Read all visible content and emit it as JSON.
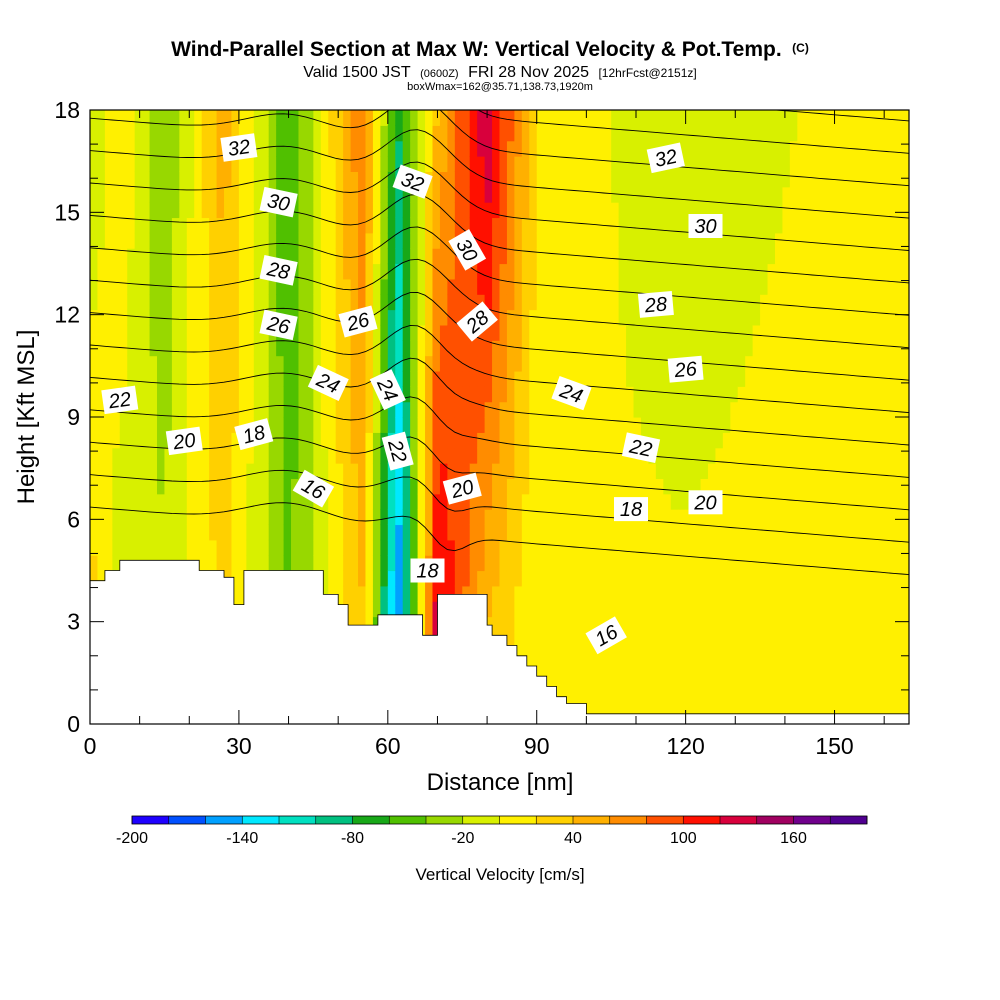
{
  "chart_data": {
    "type": "heatmap",
    "title": "Wind-Parallel Section at Max W: Vertical Velocity & Pot.Temp.",
    "title_mark": "(C)",
    "subtitle_pre": "Valid 1500 JST",
    "subtitle_small": "(0600Z)",
    "subtitle_main": "FRI 28 Nov 2025",
    "subtitle_post": "[12hrFcst@2151z]",
    "subtitle2": "boxWmax=162@35.71,138.73,1920m",
    "xlabel": "Distance [nm]",
    "ylabel": "Height [Kft MSL]",
    "xlim": [
      0,
      165
    ],
    "ylim": [
      0,
      18
    ],
    "x_ticks": [
      "0",
      "30",
      "60",
      "90",
      "120",
      "150"
    ],
    "y_ticks": [
      "0",
      "3",
      "6",
      "9",
      "12",
      "15",
      "18"
    ],
    "colorbar": {
      "label": "Vertical Velocity [cm/s]",
      "tick_labels": [
        "-200",
        "-140",
        "-80",
        "-20",
        "40",
        "100",
        "160"
      ],
      "colors": [
        "#1e00ff",
        "#0050ff",
        "#00a0ff",
        "#00e8ff",
        "#00e0c0",
        "#00c080",
        "#18a818",
        "#50c000",
        "#98d800",
        "#d8f000",
        "#fff000",
        "#ffd000",
        "#ffb000",
        "#ff8c00",
        "#ff5000",
        "#ff1000",
        "#d8003c",
        "#a00060",
        "#70008c",
        "#500090"
      ]
    },
    "velocity_bands": [
      {
        "x": 0,
        "w_top": -20,
        "w_bottom": 40
      },
      {
        "x": 6,
        "w_top": 20,
        "w_bottom": -20
      },
      {
        "x": 15,
        "w_top": -40,
        "w_bottom": -10
      },
      {
        "x": 27,
        "w_top": 50,
        "w_bottom": 20
      },
      {
        "x": 40,
        "w_top": -60,
        "w_bottom": -40
      },
      {
        "x": 55,
        "w_top": 80,
        "w_bottom": 30
      },
      {
        "x": 62,
        "w_top": -80,
        "w_bottom": -180
      },
      {
        "x": 70,
        "w_top": 40,
        "w_bottom": 150
      },
      {
        "x": 80,
        "w_top": 140,
        "w_bottom": 20
      },
      {
        "x": 90,
        "w_top": 20,
        "w_bottom": 0
      },
      {
        "x": 120,
        "w_top": -20,
        "w_bottom": 10
      },
      {
        "x": 165,
        "w_top": 20,
        "w_bottom": 20
      }
    ],
    "terrain": {
      "x": [
        0,
        3,
        3,
        6,
        6,
        22,
        22,
        27,
        27,
        29,
        29,
        31,
        31,
        36,
        36,
        47,
        47,
        50,
        50,
        52,
        52,
        58,
        58,
        67,
        67,
        70,
        70,
        80,
        80,
        81,
        81,
        84,
        84,
        86,
        86,
        88,
        88,
        90,
        90,
        92,
        92,
        94,
        94,
        96,
        96,
        100,
        100,
        106,
        106,
        165
      ],
      "height": [
        4.2,
        4.2,
        4.5,
        4.5,
        4.8,
        4.8,
        4.5,
        4.5,
        4.3,
        4.3,
        3.5,
        3.5,
        4.5,
        4.5,
        4.5,
        4.5,
        3.8,
        3.8,
        3.5,
        3.5,
        2.9,
        2.9,
        3.2,
        3.2,
        2.6,
        2.6,
        3.8,
        3.8,
        2.9,
        2.9,
        2.6,
        2.6,
        2.3,
        2.3,
        2.0,
        2.0,
        1.7,
        1.7,
        1.4,
        1.4,
        1.1,
        1.1,
        0.8,
        0.8,
        0.6,
        0.6,
        0.3,
        0.3,
        0.3,
        0.3
      ]
    },
    "theta_levels": [
      16,
      17,
      18,
      19,
      20,
      21,
      22,
      23,
      24,
      25,
      26,
      27,
      28,
      29,
      30,
      31,
      32,
      33
    ],
    "contour_labels": [
      {
        "text": "32",
        "x": 30,
        "y": 16.9,
        "rot": -8
      },
      {
        "text": "30",
        "x": 38,
        "y": 15.3,
        "rot": 12
      },
      {
        "text": "28",
        "x": 38,
        "y": 13.3,
        "rot": 12
      },
      {
        "text": "26",
        "x": 38,
        "y": 11.7,
        "rot": 12
      },
      {
        "text": "26",
        "x": 54,
        "y": 11.8,
        "rot": -15
      },
      {
        "text": "24",
        "x": 48,
        "y": 10.0,
        "rot": 25
      },
      {
        "text": "24",
        "x": 60,
        "y": 9.8,
        "rot": 65
      },
      {
        "text": "22",
        "x": 6,
        "y": 9.5,
        "rot": -8
      },
      {
        "text": "20",
        "x": 19,
        "y": 8.3,
        "rot": -8
      },
      {
        "text": "18",
        "x": 33,
        "y": 8.5,
        "rot": -15
      },
      {
        "text": "22",
        "x": 62,
        "y": 8.0,
        "rot": 75
      },
      {
        "text": "16",
        "x": 45,
        "y": 6.9,
        "rot": 30
      },
      {
        "text": "32",
        "x": 65,
        "y": 15.9,
        "rot": 20
      },
      {
        "text": "30",
        "x": 76,
        "y": 13.9,
        "rot": 60
      },
      {
        "text": "28",
        "x": 78,
        "y": 11.8,
        "rot": -40
      },
      {
        "text": "20",
        "x": 75,
        "y": 6.9,
        "rot": -15
      },
      {
        "text": "18",
        "x": 68,
        "y": 4.5,
        "rot": 0
      },
      {
        "text": "32",
        "x": 116,
        "y": 16.6,
        "rot": -12
      },
      {
        "text": "30",
        "x": 124,
        "y": 14.6,
        "rot": 0
      },
      {
        "text": "28",
        "x": 114,
        "y": 12.3,
        "rot": -5
      },
      {
        "text": "26",
        "x": 120,
        "y": 10.4,
        "rot": -5
      },
      {
        "text": "24",
        "x": 97,
        "y": 9.7,
        "rot": 20
      },
      {
        "text": "22",
        "x": 111,
        "y": 8.1,
        "rot": 12
      },
      {
        "text": "18",
        "x": 109,
        "y": 6.3,
        "rot": 0
      },
      {
        "text": "20",
        "x": 124,
        "y": 6.5,
        "rot": 0
      },
      {
        "text": "16",
        "x": 104,
        "y": 2.6,
        "rot": -30
      }
    ]
  }
}
